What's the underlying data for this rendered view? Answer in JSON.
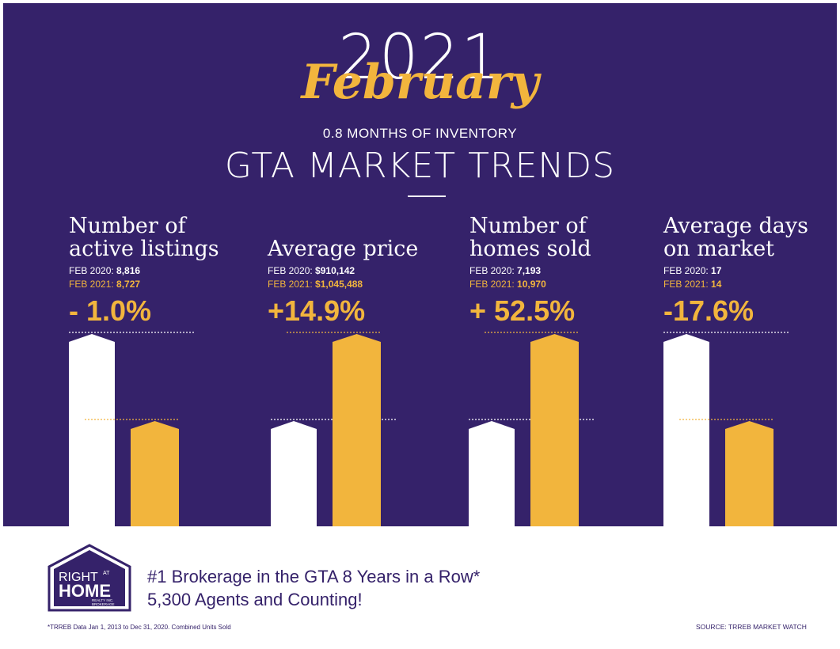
{
  "header": {
    "year": "2021",
    "month": "February",
    "inventory": "0.8 MONTHS OF INVENTORY",
    "headline": "GTA MARKET TRENDS"
  },
  "colors": {
    "background": "#35226a",
    "gold": "#f2b53d",
    "white": "#ffffff"
  },
  "chart_data": [
    {
      "type": "bar",
      "title": "Number of active listings",
      "title_lines": [
        "Number of",
        "active listings"
      ],
      "categories": [
        "FEB 2020",
        "FEB 2021"
      ],
      "values": [
        8816,
        8727
      ],
      "labels": [
        "FEB 2020:",
        "FEB 2021:"
      ],
      "value_labels": [
        "8,816",
        "8,727"
      ],
      "change": "- 1.0%"
    },
    {
      "type": "bar",
      "title": "Average price",
      "title_lines": [
        "Average price"
      ],
      "categories": [
        "FEB 2020",
        "FEB 2021"
      ],
      "values": [
        910142,
        1045488
      ],
      "labels": [
        "FEB 2020:",
        "FEB 2021:"
      ],
      "value_labels": [
        "$910,142",
        "$1,045,488"
      ],
      "change": "+14.9%"
    },
    {
      "type": "bar",
      "title": "Number of homes sold",
      "title_lines": [
        "Number of",
        "homes sold"
      ],
      "categories": [
        "FEB 2020",
        "FEB 2021"
      ],
      "values": [
        7193,
        10970
      ],
      "labels": [
        "FEB 2020:",
        "FEB 2021:"
      ],
      "value_labels": [
        "7,193",
        "10,970"
      ],
      "change": "+ 52.5%"
    },
    {
      "type": "bar",
      "title": "Average days on market",
      "title_lines": [
        "Average days",
        "on market"
      ],
      "categories": [
        "FEB 2020",
        "FEB 2021"
      ],
      "values": [
        17,
        14
      ],
      "labels": [
        "FEB 2020:",
        "FEB 2021:"
      ],
      "value_labels": [
        "17",
        "14"
      ],
      "change": "-17.6%"
    }
  ],
  "footer": {
    "logo_text": {
      "right": "RIGHT",
      "at": "AT",
      "home": "HOME",
      "sub1": "REALTY INC.",
      "sub2": "BROKERAGE"
    },
    "tagline1": "#1 Brokerage in the GTA 8 Years in a Row*",
    "tagline2": "5,300 Agents and Counting!",
    "footnote": "*TRREB Data Jan 1, 2013 to Dec 31, 2020. Combined Units Sold",
    "source": "SOURCE: TRREB MARKET WATCH"
  }
}
